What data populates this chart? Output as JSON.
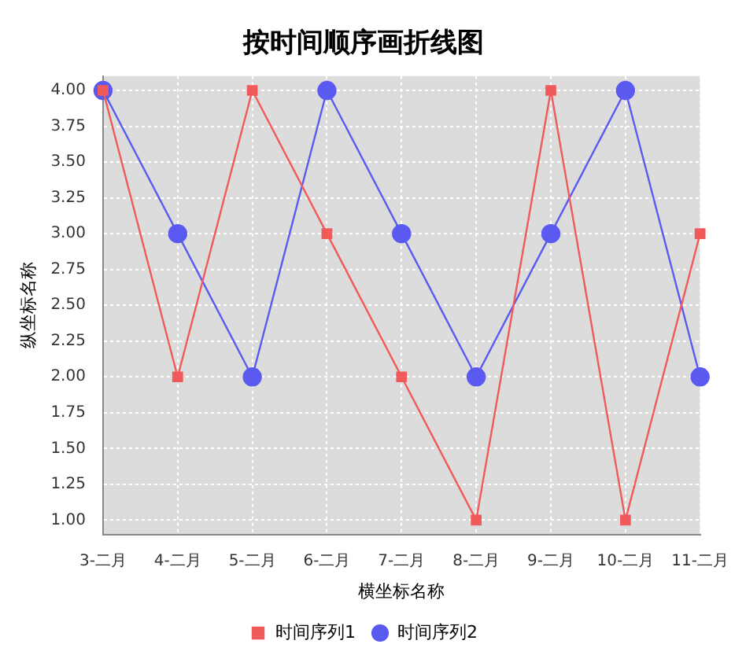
{
  "chart_data": {
    "type": "line",
    "title": "按时间顺序画折线图",
    "xlabel": "横坐标名称",
    "ylabel": "纵坐标名称",
    "categories": [
      "3-二月",
      "4-二月",
      "5-二月",
      "6-二月",
      "7-二月",
      "8-二月",
      "9-二月",
      "10-二月",
      "11-二月"
    ],
    "series": [
      {
        "name": "时间序列1",
        "color": "#f05a5a",
        "marker": "square",
        "values": [
          4,
          2,
          4,
          3,
          2,
          1,
          4,
          1,
          3
        ]
      },
      {
        "name": "时间序列2",
        "color": "#5a5af0",
        "marker": "circle",
        "values": [
          4,
          3,
          2,
          4,
          3,
          2,
          3,
          4,
          2
        ]
      }
    ],
    "ylim": [
      0.9,
      4.1
    ],
    "yticks": [
      {
        "value": 1,
        "label": "1.00"
      },
      {
        "value": 1.25,
        "label": "1.25"
      },
      {
        "value": 1.5,
        "label": "1.50"
      },
      {
        "value": 1.75,
        "label": "1.75"
      },
      {
        "value": 2,
        "label": "2.00"
      },
      {
        "value": 2.25,
        "label": "2.25"
      },
      {
        "value": 2.5,
        "label": "2.50"
      },
      {
        "value": 2.75,
        "label": "2.75"
      },
      {
        "value": 3,
        "label": "3.00"
      },
      {
        "value": 3.25,
        "label": "3.25"
      },
      {
        "value": 3.5,
        "label": "3.50"
      },
      {
        "value": 3.75,
        "label": "3.75"
      },
      {
        "value": 4,
        "label": "4.00"
      }
    ],
    "grid": true,
    "legend": "bottom",
    "line_style": "solid"
  }
}
